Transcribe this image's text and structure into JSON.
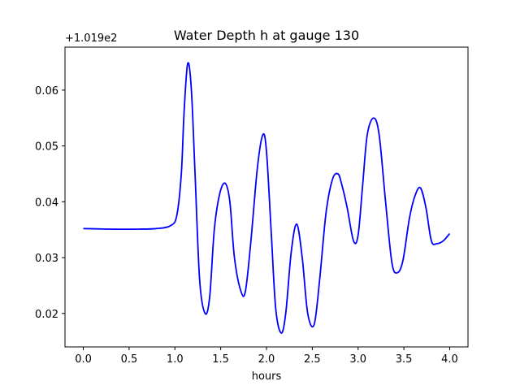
{
  "chart_data": {
    "type": "line",
    "title": "Water Depth h at gauge 130",
    "xlabel": "hours",
    "ylabel": "",
    "y_offset_label": "+1.019e2",
    "y_offset": 101.9,
    "xlim": [
      -0.2,
      4.2
    ],
    "ylim": [
      0.014,
      0.0677
    ],
    "xticks": [
      0.0,
      0.5,
      1.0,
      1.5,
      2.0,
      2.5,
      3.0,
      3.5,
      4.0
    ],
    "xtick_labels": [
      "0.0",
      "0.5",
      "1.0",
      "1.5",
      "2.0",
      "2.5",
      "3.0",
      "3.5",
      "4.0"
    ],
    "yticks": [
      0.02,
      0.03,
      0.04,
      0.05,
      0.06
    ],
    "ytick_labels": [
      "0.02",
      "0.03",
      "0.04",
      "0.05",
      "0.06"
    ],
    "grid": false,
    "legend": "none",
    "line_color": "#0000ff",
    "series": [
      {
        "x": [
          0.0,
          0.3,
          0.6,
          0.8,
          0.95,
          1.02,
          1.07,
          1.1,
          1.14,
          1.18,
          1.22,
          1.27,
          1.33,
          1.38,
          1.43,
          1.49,
          1.55,
          1.6,
          1.65,
          1.72,
          1.77,
          1.83,
          1.9,
          1.96,
          2.0,
          2.05,
          2.1,
          2.16,
          2.21,
          2.27,
          2.33,
          2.39,
          2.45,
          2.52,
          2.58,
          2.65,
          2.72,
          2.78,
          2.82,
          2.88,
          2.95,
          3.0,
          3.05,
          3.1,
          3.17,
          3.23,
          3.3,
          3.37,
          3.43,
          3.49,
          3.56,
          3.62,
          3.68,
          3.74,
          3.8,
          3.86,
          3.93,
          4.0
        ],
        "y": [
          0.0352,
          0.0351,
          0.0351,
          0.0352,
          0.0357,
          0.0375,
          0.045,
          0.056,
          0.0648,
          0.06,
          0.045,
          0.026,
          0.02,
          0.023,
          0.035,
          0.0415,
          0.0433,
          0.04,
          0.03,
          0.024,
          0.024,
          0.033,
          0.046,
          0.052,
          0.049,
          0.035,
          0.021,
          0.0165,
          0.02,
          0.031,
          0.036,
          0.03,
          0.02,
          0.018,
          0.026,
          0.038,
          0.044,
          0.045,
          0.0432,
          0.039,
          0.033,
          0.034,
          0.043,
          0.052,
          0.055,
          0.052,
          0.04,
          0.029,
          0.0273,
          0.0295,
          0.037,
          0.041,
          0.0425,
          0.039,
          0.033,
          0.0325,
          0.033,
          0.0343
        ]
      }
    ]
  }
}
